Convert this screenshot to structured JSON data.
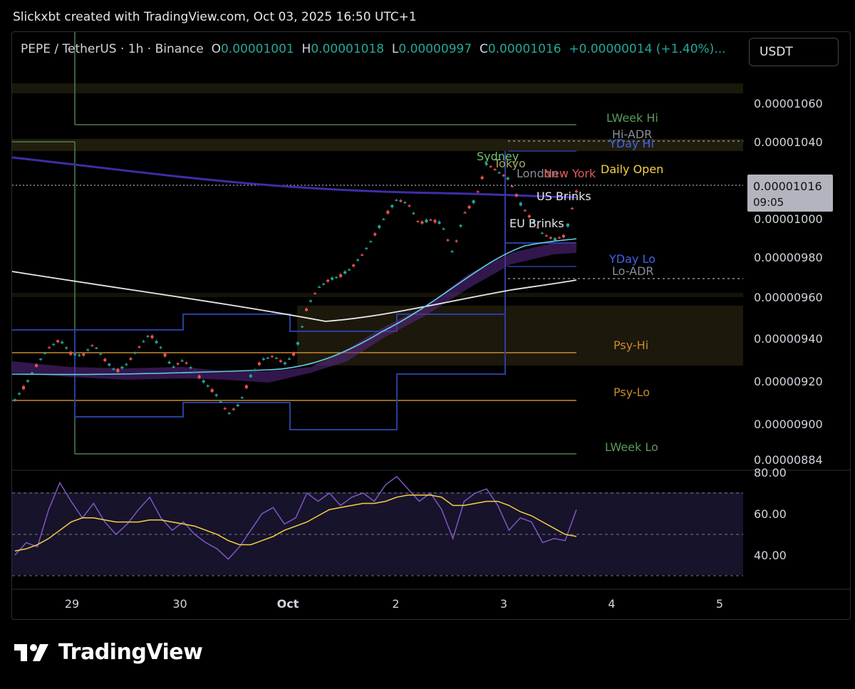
{
  "attribution": "Slickxbt created with TradingView.com, Oct 03, 2025 16:50 UTC+1",
  "legend": {
    "symbol": "PEPE / TetherUS · 1h · Binance",
    "o_label": "O",
    "o": "0.00001001",
    "h_label": "H",
    "h": "0.00001018",
    "l_label": "L",
    "l": "0.00000997",
    "c_label": "C",
    "c": "0.00001016",
    "change": "+0.00000014 (+1.40%)",
    "more": "..."
  },
  "currency_button": "USDT",
  "brand": "TradingView",
  "colors": {
    "up": "#26a69a",
    "down": "#ef5350",
    "rsi": "#7e57c2",
    "rsi_ma": "#f5d142",
    "level_blue": "#2a3f9c",
    "level_green": "#4e7f4e",
    "psy": "#c98a2a",
    "ema_white": "#e8e8e8",
    "ema_purple": "#3b2fa8"
  },
  "chart_data": [
    {
      "type": "line",
      "subtype": "candlestick",
      "title": "PEPE / TetherUS · 1h · Binance",
      "x_ticks": [
        "29",
        "30",
        "Oct",
        "2",
        "3",
        "4",
        "5"
      ],
      "y_ticks": [
        "0.00001060",
        "0.00001040",
        "0.00001000",
        "0.00000980",
        "0.00000960",
        "0.00000940",
        "0.00000920",
        "0.00000900",
        "0.00000884"
      ],
      "ylim": [
        8.8e-06,
        1.07e-05
      ],
      "last_price": "0.00001016",
      "countdown": "09:05",
      "x": [
        0.0,
        0.1,
        0.2,
        0.3,
        0.4,
        0.5,
        0.6,
        0.7,
        0.8,
        0.9,
        1.0,
        1.1,
        1.2,
        1.3,
        1.4,
        1.5,
        1.6,
        1.7,
        1.8,
        1.9,
        2.0,
        2.1,
        2.2,
        2.3,
        2.4,
        2.5,
        2.6,
        2.7,
        2.8,
        2.9,
        3.0,
        3.1,
        3.2,
        3.3,
        3.4,
        3.5,
        3.6,
        3.7,
        3.8,
        3.9,
        4.0,
        4.1,
        4.2,
        4.3,
        4.4,
        4.5,
        4.6,
        4.7,
        4.8,
        4.9,
        5.0
      ],
      "series": [
        {
          "values": [
            9.12e-06,
            9.2e-06,
            9.3e-06,
            9.38e-06,
            9.42e-06,
            9.35e-06,
            9.34e-06,
            9.4e-06,
            9.32e-06,
            9.26e-06,
            9.3e-06,
            9.38e-06,
            9.45e-06,
            9.38e-06,
            9.28e-06,
            9.32e-06,
            9.26e-06,
            9.2e-06,
            9.14e-06,
            9.05e-06,
            9.1e-06,
            9.24e-06,
            9.32e-06,
            9.34e-06,
            9.3e-06,
            9.36e-06,
            9.58e-06,
            9.68e-06,
            9.72e-06,
            9.74e-06,
            9.78e-06,
            9.85e-06,
            9.94e-06,
            1.004e-05,
            1.012e-05,
            1.01e-05,
            1e-05,
            1.002e-05,
            1e-05,
            9.85e-06,
            1.005e-05,
            1.012e-05,
            1.03e-05,
            1.026e-05,
            1.022e-05,
            1.01e-05,
            1.002e-05,
            9.95e-06,
            9.92e-06,
            9.94e-06,
            1.016e-05
          ]
        }
      ],
      "levels": [
        {
          "label": "LWeek Hi",
          "value": 1.05e-05
        },
        {
          "label": "Hi-ADR",
          "value": 1.04e-05
        },
        {
          "label": "YDay Hi",
          "value": 1.036e-05
        },
        {
          "label": "Daily Open",
          "value": 1.016e-05
        },
        {
          "label": "YDay Lo",
          "value": 9.8e-06
        },
        {
          "label": "Lo-ADR",
          "value": 9.74e-06
        },
        {
          "label": "Psy-Hi",
          "value": 9.33e-06
        },
        {
          "label": "Psy-Lo",
          "value": 9.11e-06
        },
        {
          "label": "LWeek Lo",
          "value": 8.86e-06
        }
      ],
      "sessions": [
        "Sydney",
        "Tokyo",
        "London",
        "New York"
      ],
      "annotations": [
        "US Brinks",
        "EU Brinks"
      ]
    },
    {
      "type": "line",
      "title": "RSI",
      "x_ticks": [
        "29",
        "30",
        "Oct",
        "2",
        "3",
        "4",
        "5"
      ],
      "y_ticks": [
        "80.00",
        "60.00",
        "40.00"
      ],
      "ylim": [
        30,
        80
      ],
      "x": [
        0.0,
        0.1,
        0.2,
        0.3,
        0.4,
        0.5,
        0.6,
        0.7,
        0.8,
        0.9,
        1.0,
        1.1,
        1.2,
        1.3,
        1.4,
        1.5,
        1.6,
        1.7,
        1.8,
        1.9,
        2.0,
        2.1,
        2.2,
        2.3,
        2.4,
        2.5,
        2.6,
        2.7,
        2.8,
        2.9,
        3.0,
        3.1,
        3.2,
        3.3,
        3.4,
        3.5,
        3.6,
        3.7,
        3.8,
        3.9,
        4.0,
        4.1,
        4.2,
        4.3,
        4.4,
        4.5,
        4.6,
        4.7,
        4.8,
        4.9,
        5.0
      ],
      "series": [
        {
          "values": [
            40,
            46,
            44,
            62,
            75,
            66,
            58,
            65,
            56,
            50,
            55,
            62,
            68,
            58,
            52,
            56,
            50,
            46,
            43,
            38,
            44,
            52,
            60,
            63,
            55,
            58,
            70,
            66,
            70,
            64,
            68,
            70,
            66,
            74,
            78,
            72,
            66,
            70,
            62,
            48,
            66,
            70,
            72,
            64,
            52,
            58,
            56,
            46,
            48,
            47,
            62
          ]
        },
        {
          "values": [
            42,
            43,
            45,
            48,
            52,
            56,
            58,
            58,
            57,
            56,
            56,
            56,
            57,
            57,
            56,
            55,
            54,
            52,
            50,
            47,
            45,
            45,
            47,
            49,
            52,
            54,
            56,
            59,
            62,
            63,
            64,
            65,
            65,
            66,
            68,
            69,
            69,
            69,
            68,
            64,
            64,
            65,
            66,
            66,
            64,
            61,
            59,
            56,
            53,
            50,
            49
          ]
        }
      ]
    }
  ]
}
